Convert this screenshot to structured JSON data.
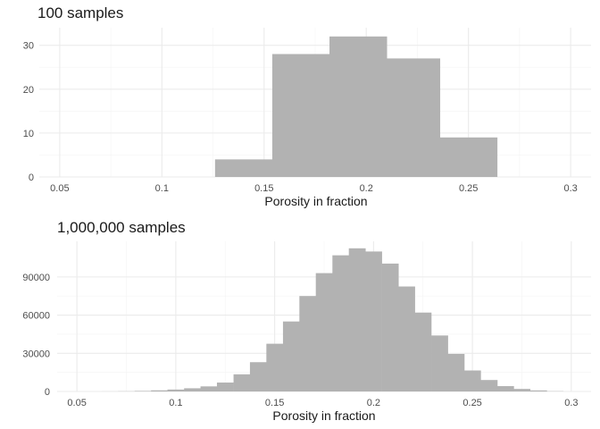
{
  "chart_data": [
    {
      "type": "bar",
      "title": "100 samples",
      "xlabel": "Porosity in fraction",
      "ylabel": "",
      "xlim": [
        0.04,
        0.31
      ],
      "ylim": [
        0,
        34
      ],
      "x_ticks": [
        0.05,
        0.1,
        0.15,
        0.2,
        0.25,
        0.3
      ],
      "x_tick_labels": [
        "0.05",
        "0.1",
        "0.15",
        "0.2",
        "0.25",
        "0.3"
      ],
      "y_ticks": [
        0,
        10,
        20,
        30
      ],
      "y_tick_labels": [
        "0",
        "10",
        "20",
        "30"
      ],
      "bins": [
        {
          "start": 0.126,
          "end": 0.154,
          "count": 4
        },
        {
          "start": 0.154,
          "end": 0.182,
          "count": 28
        },
        {
          "start": 0.182,
          "end": 0.21,
          "count": 32
        },
        {
          "start": 0.21,
          "end": 0.236,
          "count": 27
        },
        {
          "start": 0.236,
          "end": 0.264,
          "count": 9
        }
      ],
      "bar_color": "#b2b2b2",
      "grid": true,
      "legend": "none"
    },
    {
      "type": "bar",
      "title": "1,000,000 samples",
      "xlabel": "Porosity in fraction",
      "ylabel": "",
      "xlim": [
        0.04,
        0.31
      ],
      "ylim": [
        0,
        118000
      ],
      "x_ticks": [
        0.05,
        0.1,
        0.15,
        0.2,
        0.25,
        0.3
      ],
      "x_tick_labels": [
        "0.05",
        "0.1",
        "0.15",
        "0.2",
        "0.25",
        "0.3"
      ],
      "y_ticks": [
        0,
        30000,
        60000,
        90000
      ],
      "y_tick_labels": [
        "0",
        "30000",
        "60000",
        "90000"
      ],
      "bin_width": 0.008333,
      "bin_starts": [
        0.0625,
        0.0708,
        0.0792,
        0.0875,
        0.0958,
        0.1042,
        0.1125,
        0.1208,
        0.1292,
        0.1375,
        0.1458,
        0.1542,
        0.1625,
        0.1708,
        0.1792,
        0.1875,
        0.1958,
        0.2042,
        0.2125,
        0.2208,
        0.2292,
        0.2375,
        0.2458,
        0.2542,
        0.2625,
        0.2708,
        0.2792,
        0.2875
      ],
      "counts": [
        50,
        150,
        400,
        900,
        1500,
        2500,
        4000,
        7000,
        13500,
        23000,
        37500,
        55000,
        75000,
        93000,
        107000,
        112500,
        110000,
        100500,
        82500,
        62000,
        44000,
        29500,
        16500,
        9000,
        4200,
        2000,
        800,
        200
      ],
      "bar_color": "#b2b2b2",
      "grid": true,
      "legend": "none"
    }
  ]
}
